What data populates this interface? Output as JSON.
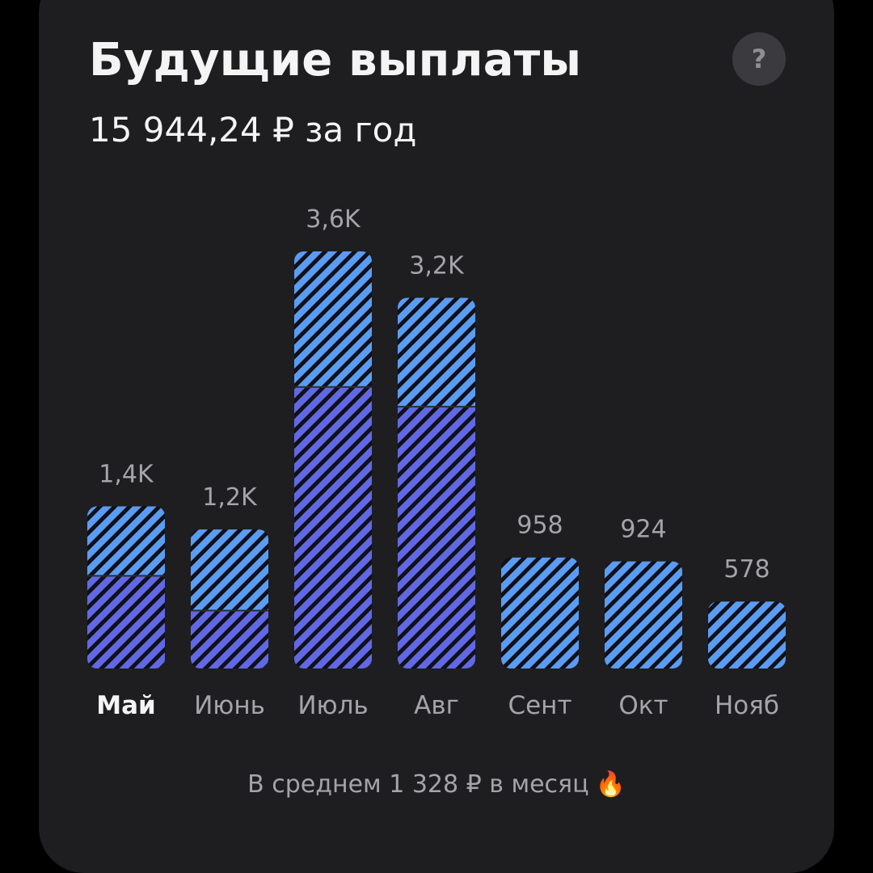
{
  "header": {
    "title": "Будущие выплаты",
    "subtitle": "15 944,24 ₽ за год",
    "help_label": "?"
  },
  "footer": {
    "text": "В среднем 1 328 ₽ в месяц",
    "emoji": "🔥"
  },
  "colors": {
    "background": "#1e1e20",
    "upper_stripe": "#5a9cf2",
    "lower_stripe": "#6168e4",
    "stripe_gap": "#101018",
    "label": "#a4a4a9",
    "selected_label": "#f4f4f5"
  },
  "chart_data": {
    "type": "bar",
    "stacked": true,
    "categories": [
      "Май",
      "Июнь",
      "Июль",
      "Авг",
      "Сент",
      "Окт",
      "Нояб"
    ],
    "selected_category": "Май",
    "value_labels": [
      "1,4K",
      "1,2K",
      "3,6K",
      "3,2K",
      "958",
      "924",
      "578"
    ],
    "totals": [
      1400,
      1200,
      3600,
      3200,
      958,
      924,
      578
    ],
    "series": [
      {
        "values": [
          800,
          500,
          2430,
          2260,
          0,
          0,
          0
        ]
      },
      {
        "values": [
          600,
          700,
          1170,
          940,
          958,
          924,
          578
        ]
      }
    ],
    "ylim": [
      0,
      3600
    ],
    "grid": false,
    "legend": false
  }
}
